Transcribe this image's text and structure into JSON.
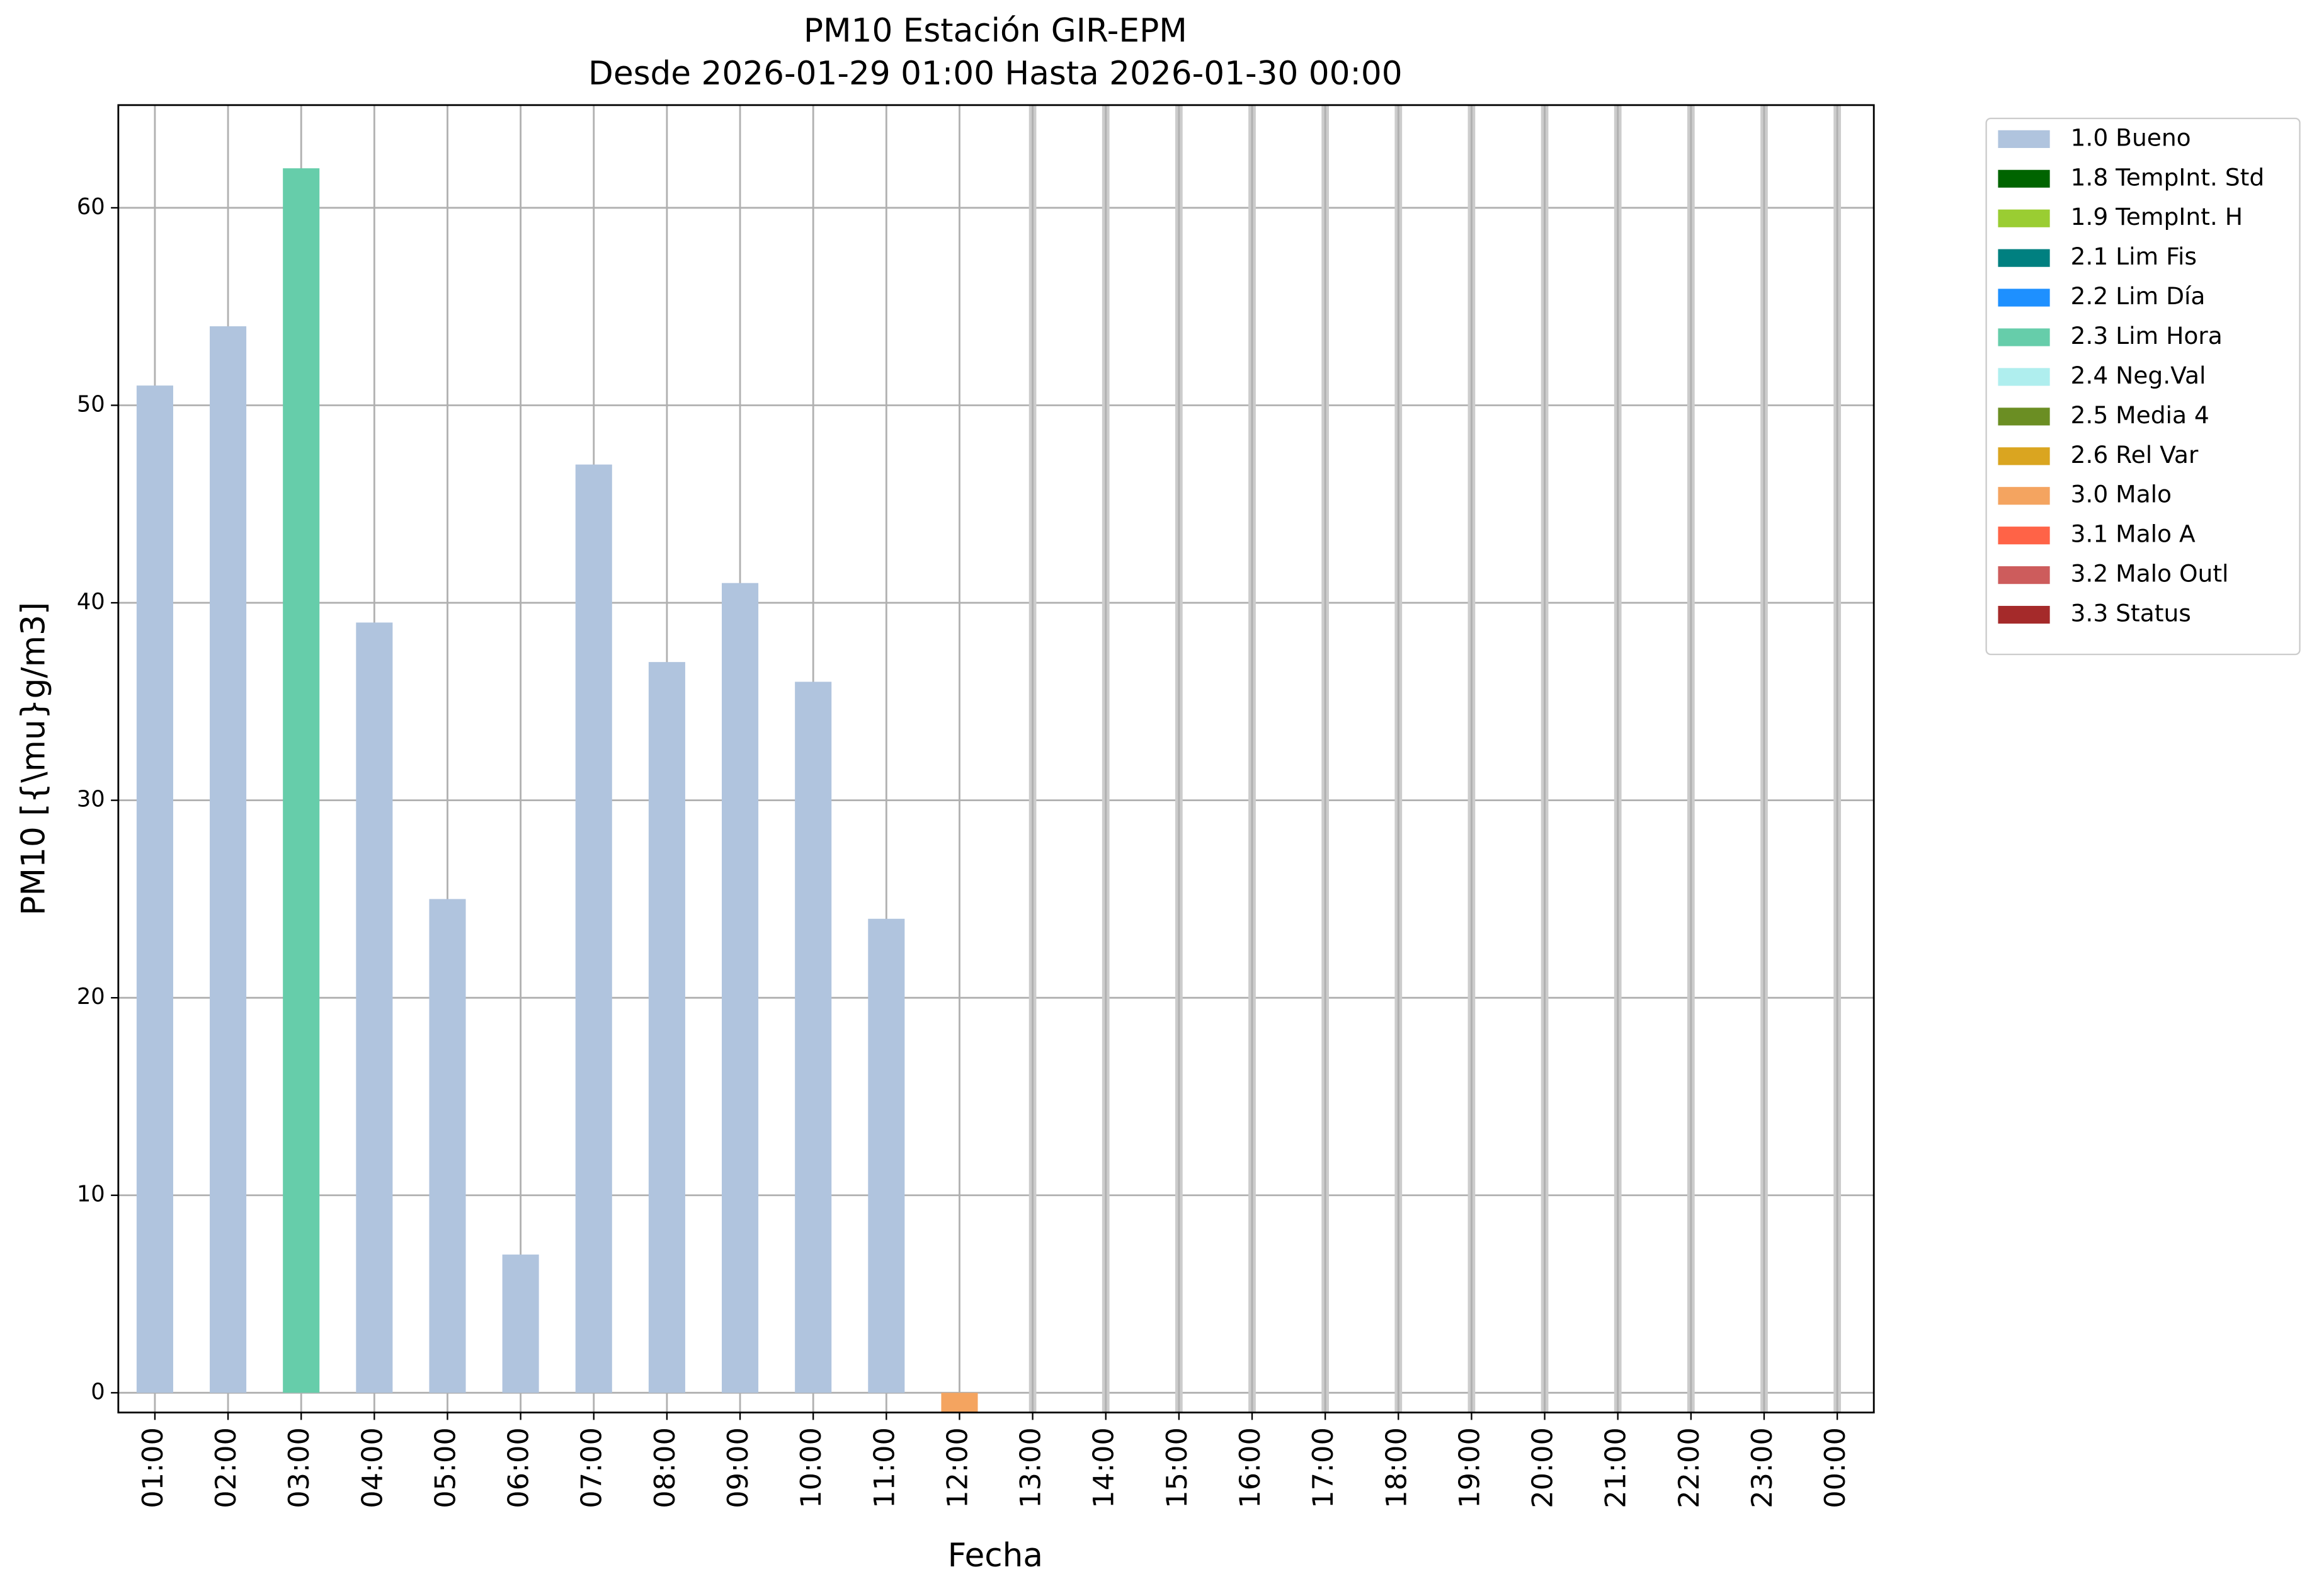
{
  "chart_data": {
    "type": "bar",
    "title": "PM10 Estación GIR-EPM",
    "subtitle": "Desde 2026-01-29 01:00 Hasta 2026-01-30 00:00",
    "x_label": "Fecha",
    "y_label": "PM10 [{\\mu}g/m3]",
    "categories": [
      "01:00",
      "02:00",
      "03:00",
      "04:00",
      "05:00",
      "06:00",
      "07:00",
      "08:00",
      "09:00",
      "10:00",
      "11:00",
      "12:00",
      "13:00",
      "14:00",
      "15:00",
      "16:00",
      "17:00",
      "18:00",
      "19:00",
      "20:00",
      "21:00",
      "22:00",
      "23:00",
      "00:00"
    ],
    "values": [
      51,
      54,
      62,
      39,
      25,
      7,
      47,
      37,
      41,
      36,
      24,
      -1,
      null,
      null,
      null,
      null,
      null,
      null,
      null,
      null,
      null,
      null,
      null,
      null
    ],
    "colors": [
      "#b0c4de",
      "#b0c4de",
      "#66cdaa",
      "#b0c4de",
      "#b0c4de",
      "#b0c4de",
      "#b0c4de",
      "#b0c4de",
      "#b0c4de",
      "#b0c4de",
      "#b0c4de",
      "#f4a460",
      null,
      null,
      null,
      null,
      null,
      null,
      null,
      null,
      null,
      null,
      null,
      null
    ],
    "legend": [
      {
        "name": "1.0 Bueno",
        "color": "#b0c4de"
      },
      {
        "name": "1.8 TempInt. Std",
        "color": "#006400"
      },
      {
        "name": "1.9 TempInt. H",
        "color": "#9acd32"
      },
      {
        "name": "2.1 Lim Fis",
        "color": "#008080"
      },
      {
        "name": "2.2 Lim Día",
        "color": "#1e90ff"
      },
      {
        "name": "2.3 Lim Hora",
        "color": "#66cdaa"
      },
      {
        "name": "2.4 Neg.Val",
        "color": "#afeeee"
      },
      {
        "name": "2.5 Media 4",
        "color": "#6b8e23"
      },
      {
        "name": "2.6 Rel Var",
        "color": "#daa520"
      },
      {
        "name": "3.0 Malo",
        "color": "#f4a460"
      },
      {
        "name": "3.1 Malo A",
        "color": "#ff6347"
      },
      {
        "name": "3.2 Malo Outl",
        "color": "#cd5c5c"
      },
      {
        "name": "3.3 Status",
        "color": "#a52a2a"
      }
    ],
    "legend_position": "outside right",
    "ylim": [
      -1,
      65.2
    ],
    "yticks": [
      0,
      10,
      20,
      30,
      40,
      50,
      60
    ],
    "grid": true
  }
}
